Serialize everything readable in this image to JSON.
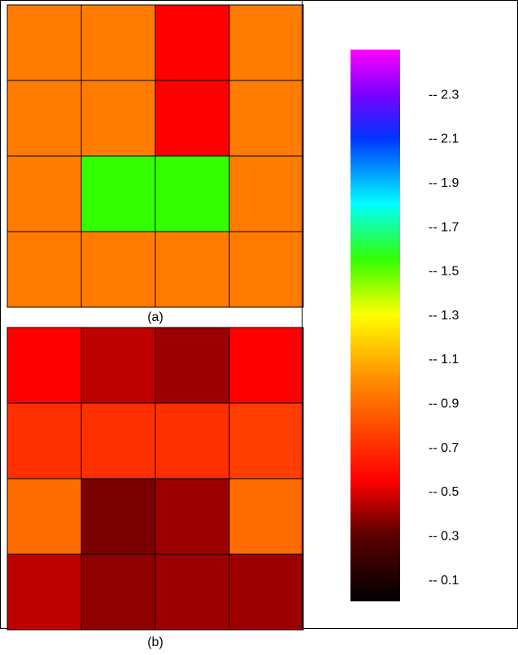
{
  "chart_data": {
    "type": "heatmap",
    "panels": [
      {
        "label": "(a)",
        "rows": 4,
        "cols": 4,
        "values": [
          [
            0.95,
            0.95,
            0.55,
            0.95
          ],
          [
            0.95,
            0.95,
            0.55,
            0.95
          ],
          [
            0.95,
            1.55,
            1.55,
            0.95
          ],
          [
            0.95,
            0.95,
            0.95,
            0.95
          ]
        ]
      },
      {
        "label": "(b)",
        "rows": 4,
        "cols": 4,
        "values": [
          [
            0.55,
            0.45,
            0.4,
            0.55
          ],
          [
            0.7,
            0.7,
            0.7,
            0.75
          ],
          [
            0.9,
            0.35,
            0.4,
            0.9
          ],
          [
            0.45,
            0.38,
            0.4,
            0.4
          ]
        ]
      }
    ],
    "colorbar": {
      "range": [
        0,
        2.5
      ],
      "ticks": [
        0.1,
        0.3,
        0.5,
        0.7,
        0.9,
        1.1,
        1.3,
        1.5,
        1.7,
        1.9,
        2.1,
        2.3
      ],
      "tick_labels": [
        "-- 0.1",
        "-- 0.3",
        "-- 0.5",
        "-- 0.7",
        "-- 0.9",
        "-- 1.1",
        "-- 1.3",
        "-- 1.5",
        "-- 1.7",
        "-- 1.9",
        "-- 2.1",
        "-- 2.3"
      ],
      "colormap": [
        [
          0.0,
          "#000000"
        ],
        [
          0.12,
          "#5a0000"
        ],
        [
          0.22,
          "#ff0000"
        ],
        [
          0.4,
          "#ff8c00"
        ],
        [
          0.52,
          "#ffff00"
        ],
        [
          0.62,
          "#33ff00"
        ],
        [
          0.72,
          "#00ffff"
        ],
        [
          0.84,
          "#0033ff"
        ],
        [
          0.92,
          "#7a00ff"
        ],
        [
          1.0,
          "#ff00ff"
        ]
      ]
    }
  }
}
